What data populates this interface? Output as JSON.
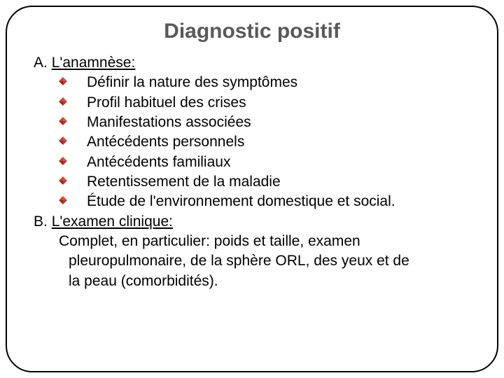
{
  "slide": {
    "title": "Diagnostic positif",
    "title_color": "#595959",
    "title_fontsize": 30,
    "body_fontsize": 21,
    "body_color": "#000000",
    "border_color": "#000000",
    "border_radius": 38,
    "background_color": "#ffffff",
    "bullet": {
      "colors": {
        "top": "#e84c3d",
        "right": "#b83a2e",
        "bottom": "#8b2c22",
        "left": "#c74333"
      },
      "size": 12
    },
    "sectionA": {
      "letter": "A.  ",
      "heading": "L'anamnèse:",
      "items": [
        "Définir la nature des symptômes",
        "Profil habituel des crises",
        "Manifestations associées",
        "Antécédents personnels",
        "Antécédents familiaux",
        "Retentissement de la maladie",
        "Étude de l'environnement domestique et social."
      ]
    },
    "sectionB": {
      "letter": "B.  ",
      "heading": "L'examen clinique:",
      "body_line1": "Complet, en particulier: poids et taille, examen",
      "body_line2": "pleuropulmonaire,  de la sphère ORL, des yeux et de",
      "body_line3": "la peau (comorbidités)."
    }
  }
}
